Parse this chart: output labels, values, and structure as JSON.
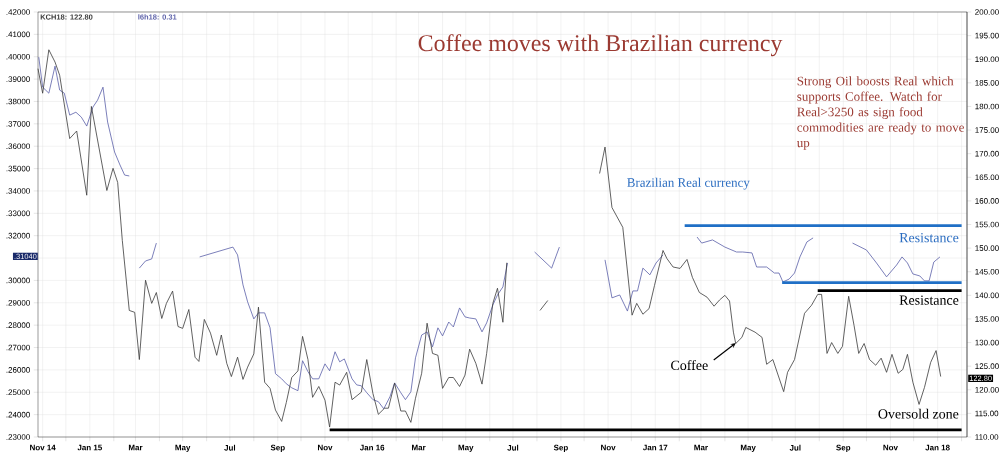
{
  "chart_data": {
    "type": "line",
    "title": "Coffee moves with Brazilian currency",
    "annotations": [
      "Strong Oil boosts Real which supports Coffee. Watch for Real>3250 as sign food commodities are ready to move up",
      "Brazilian Real currency",
      "Resistance",
      "Resistance",
      {
        "text": "Coffee",
        "x": "2017-04-15",
        "y": 0.272
      },
      "Oversold zone",
      ".31040",
      "122.80"
    ],
    "xlim": [
      "2014-10-26",
      "2018-02-08"
    ],
    "xticks": [
      {
        "value": "2014-11-01",
        "label": "Nov 14"
      },
      {
        "value": "2014-12-01",
        "label": null
      },
      {
        "value": "2015-01-01",
        "label": "Jan 15"
      },
      {
        "value": "2015-02-01",
        "label": null
      },
      {
        "value": "2015-03-01",
        "label": "Mar"
      },
      {
        "value": "2015-04-01",
        "label": null
      },
      {
        "value": "2015-05-01",
        "label": "May"
      },
      {
        "value": "2015-06-01",
        "label": null
      },
      {
        "value": "2015-07-01",
        "label": "Jul"
      },
      {
        "value": "2015-08-01",
        "label": null
      },
      {
        "value": "2015-09-01",
        "label": "Sep"
      },
      {
        "value": "2015-10-01",
        "label": null
      },
      {
        "value": "2015-11-01",
        "label": "Nov"
      },
      {
        "value": "2015-12-01",
        "label": null
      },
      {
        "value": "2016-01-01",
        "label": "Jan 16"
      },
      {
        "value": "2016-02-01",
        "label": null
      },
      {
        "value": "2016-03-01",
        "label": "Mar"
      },
      {
        "value": "2016-04-01",
        "label": null
      },
      {
        "value": "2016-05-01",
        "label": "May"
      },
      {
        "value": "2016-06-01",
        "label": null
      },
      {
        "value": "2016-07-01",
        "label": "Jul"
      },
      {
        "value": "2016-08-01",
        "label": null
      },
      {
        "value": "2016-09-01",
        "label": "Sep"
      },
      {
        "value": "2016-10-01",
        "label": null
      },
      {
        "value": "2016-11-01",
        "label": "Nov"
      },
      {
        "value": "2016-12-01",
        "label": null
      },
      {
        "value": "2017-01-01",
        "label": "Jan 17"
      },
      {
        "value": "2017-02-01",
        "label": null
      },
      {
        "value": "2017-03-01",
        "label": "Mar"
      },
      {
        "value": "2017-04-01",
        "label": null
      },
      {
        "value": "2017-05-01",
        "label": "May"
      },
      {
        "value": "2017-06-01",
        "label": null
      },
      {
        "value": "2017-07-01",
        "label": "Jul"
      },
      {
        "value": "2017-08-01",
        "label": null
      },
      {
        "value": "2017-09-01",
        "label": "Sep"
      },
      {
        "value": "2017-10-01",
        "label": null
      },
      {
        "value": "2017-11-01",
        "label": "Nov"
      },
      {
        "value": "2017-12-01",
        "label": null
      },
      {
        "value": "2018-01-01",
        "label": "Jan 18"
      },
      {
        "value": "2018-02-01",
        "label": null
      }
    ],
    "ylim": [
      0.23,
      0.42
    ],
    "yticks": [
      {
        "value": 0.23,
        "label": ".23000"
      },
      {
        "value": 0.24,
        "label": ".24000"
      },
      {
        "value": 0.25,
        "label": ".25000"
      },
      {
        "value": 0.26,
        "label": ".26000"
      },
      {
        "value": 0.27,
        "label": ".27000"
      },
      {
        "value": 0.28,
        "label": ".28000"
      },
      {
        "value": 0.29,
        "label": ".29000"
      },
      {
        "value": 0.3,
        "label": ".30000"
      },
      {
        "value": 0.31,
        "label": null
      },
      {
        "value": 0.32,
        "label": ".32000"
      },
      {
        "value": 0.33,
        "label": ".33000"
      },
      {
        "value": 0.34,
        "label": ".34000"
      },
      {
        "value": 0.35,
        "label": ".35000"
      },
      {
        "value": 0.36,
        "label": ".36000"
      },
      {
        "value": 0.37,
        "label": ".37000"
      },
      {
        "value": 0.38,
        "label": ".38000"
      },
      {
        "value": 0.39,
        "label": ".39000"
      },
      {
        "value": 0.4,
        "label": ".40000"
      },
      {
        "value": 0.41,
        "label": ".41000"
      },
      {
        "value": 0.42,
        "label": ".42000"
      }
    ],
    "y2lim": [
      110,
      200
    ],
    "y2ticks": [
      {
        "value": 110,
        "label": "110.00"
      },
      {
        "value": 115,
        "label": "115.00"
      },
      {
        "value": 120,
        "label": "120.00"
      },
      {
        "value": 125,
        "label": "125.00"
      },
      {
        "value": 130,
        "label": "130.00"
      },
      {
        "value": 135,
        "label": "135.00"
      },
      {
        "value": 140,
        "label": "140.00"
      },
      {
        "value": 145,
        "label": "145.00"
      },
      {
        "value": 150,
        "label": "150.00"
      },
      {
        "value": 155,
        "label": "155.00"
      },
      {
        "value": 160,
        "label": "160.00"
      },
      {
        "value": 165,
        "label": "165.00"
      },
      {
        "value": 170,
        "label": "170.00"
      },
      {
        "value": 175,
        "label": "175.00"
      },
      {
        "value": 180,
        "label": "180.00"
      },
      {
        "value": 185,
        "label": "185.00"
      },
      {
        "value": 190,
        "label": "190.00"
      },
      {
        "value": 195,
        "label": "195.00"
      },
      {
        "value": 200,
        "label": "200.00"
      }
    ],
    "grid": true,
    "legend": "top left",
    "series": [
      {
        "name": "KCH18: 122.80",
        "color": "#3a3a3a",
        "axis": "y2",
        "x": [
          "2014-10-26",
          "2014-11-01",
          "2014-11-09",
          "2014-11-17",
          "2014-11-23",
          "2014-12-06",
          "2014-12-15",
          "2014-12-28",
          "2015-01-03",
          "2015-01-23",
          "2015-01-31",
          "2015-02-06",
          "2015-02-12",
          "2015-02-21",
          "2015-02-28",
          "2015-03-06",
          "2015-03-14",
          "2015-03-22",
          "2015-03-28",
          "2015-04-04",
          "2015-04-10",
          "2015-04-18",
          "2015-04-25",
          "2015-05-01",
          "2015-05-09",
          "2015-05-17",
          "2015-05-22",
          "2015-05-29",
          "2015-06-06",
          "2015-06-14",
          "2015-06-20",
          "2015-06-27",
          "2015-07-03",
          "2015-07-11",
          "2015-07-18",
          "2015-07-24",
          "2015-08-01",
          "2015-08-07",
          "2015-08-15",
          "2015-08-22",
          "2015-08-29",
          "2015-09-06",
          "2015-09-12",
          "2015-09-19",
          "2015-09-27",
          "2015-10-03",
          "2015-10-10",
          "2015-10-16",
          "2015-10-24",
          "2015-11-01",
          "2015-11-07",
          "2015-11-14",
          "2015-11-20",
          "2015-11-29",
          "2015-12-06",
          "2015-12-18",
          "2015-12-25",
          "2016-01-02",
          "2016-01-09",
          "2016-01-17",
          "2016-01-22",
          "2016-01-30",
          "2016-02-07",
          "2016-02-13",
          "2016-02-20",
          "2016-02-26",
          "2016-03-05",
          "2016-03-12",
          "2016-03-19",
          "2016-03-26",
          "2016-04-01",
          "2016-04-09",
          "2016-04-15",
          "2016-04-23",
          "2016-04-30",
          "2016-05-06",
          "2016-05-14",
          "2016-05-22",
          "2016-05-28",
          "2016-06-05",
          "2016-06-11",
          "2016-06-18",
          "2016-06-23",
          "2016-07-10",
          "2016-08-05",
          "2016-08-15",
          "2016-09-20",
          "2016-10-21",
          "2016-10-28",
          "2016-11-06",
          "2016-11-20",
          "2016-12-02",
          "2016-12-08",
          "2016-12-16",
          "2016-12-24",
          "2016-12-31",
          "2017-01-11",
          "2017-01-16",
          "2017-01-24",
          "2017-02-02",
          "2017-02-11",
          "2017-02-18",
          "2017-02-27",
          "2017-03-09",
          "2017-03-18",
          "2017-03-25",
          "2017-04-01",
          "2017-04-07",
          "2017-04-12",
          "2017-04-15",
          "2017-04-23",
          "2017-04-28",
          "2017-05-10",
          "2017-05-19",
          "2017-05-25",
          "2017-06-02",
          "2017-06-16",
          "2017-06-21",
          "2017-06-30",
          "2017-07-13",
          "2017-07-22",
          "2017-07-30",
          "2017-08-04",
          "2017-08-11",
          "2017-08-17",
          "2017-08-25",
          "2017-08-31",
          "2017-09-08",
          "2017-09-15",
          "2017-09-21",
          "2017-09-28",
          "2017-10-05",
          "2017-10-13",
          "2017-10-20",
          "2017-10-27",
          "2017-11-03",
          "2017-11-11",
          "2017-11-17",
          "2017-11-23",
          "2017-11-30",
          "2017-12-08",
          "2017-12-15",
          "2017-12-23",
          "2017-12-30",
          "2018-01-05"
        ],
        "values": [
          188,
          182.8,
          192,
          189.4,
          186.6,
          173.2,
          174.8,
          161.2,
          180,
          162.2,
          166.9,
          163.9,
          151.6,
          136.8,
          136.4,
          126.4,
          143.2,
          138.3,
          140.6,
          135.1,
          138.3,
          140.9,
          133.4,
          133,
          137,
          126.9,
          126,
          134.9,
          132,
          127.3,
          131.6,
          125.6,
          122.8,
          126.9,
          122.2,
          124.8,
          127.6,
          137.5,
          121.6,
          120.3,
          115.7,
          113.3,
          117.3,
          122.6,
          124,
          131.3,
          126.4,
          118.4,
          120.7,
          117.8,
          112.1,
          121.6,
          121,
          123.7,
          117.9,
          119.5,
          126.4,
          119.2,
          114.8,
          116.1,
          116.1,
          121.4,
          115.5,
          115.5,
          113.1,
          118.2,
          123.5,
          134.1,
          127.7,
          127.3,
          120.3,
          122.6,
          122.6,
          120.7,
          123.1,
          128.6,
          125.6,
          121.2,
          127.7,
          138.3,
          141.5,
          134.3,
          146.9,
          null,
          136.8,
          138.9,
          null,
          165.8,
          171.4,
          158.6,
          154.4,
          135.8,
          138.3,
          136,
          137.2,
          142.1,
          149.5,
          147.8,
          146,
          145.7,
          147.6,
          143.8,
          140.6,
          139.6,
          137.7,
          139,
          140,
          138.8,
          132.2,
          129.8,
          131.1,
          133.2,
          132.2,
          131.1,
          125.4,
          126.4,
          119.6,
          123.7,
          126.4,
          136.2,
          137.9,
          140.2,
          140.2,
          127.7,
          130,
          127.7,
          129.2,
          139.8,
          133.6,
          127.7,
          129.8,
          126.4,
          125.2,
          126.7,
          123.7,
          127.5,
          123.5,
          124.3,
          127.5,
          121.6,
          116.9,
          120.5,
          125.8,
          128.3,
          122.8
        ]
      },
      {
        "name": "l6h18: 0.31",
        "color": "#5a5fa8",
        "x": [
          "2014-10-27",
          "2014-11-01",
          "2014-11-09",
          "2014-11-17",
          "2014-11-23",
          "2014-11-29",
          "2014-12-06",
          "2014-12-14",
          "2014-12-21",
          "2014-12-28",
          "2015-01-05",
          "2015-01-11",
          "2015-01-18",
          "2015-01-24",
          "2015-02-02",
          "2015-02-09",
          "2015-02-15",
          "2015-02-21",
          "2015-02-28",
          "2015-03-06",
          "2015-03-14",
          "2015-03-22",
          "2015-03-28",
          "2015-04-25",
          "2015-05-23",
          "2015-07-05",
          "2015-07-11",
          "2015-07-18",
          "2015-07-24",
          "2015-08-01",
          "2015-08-07",
          "2015-08-15",
          "2015-08-22",
          "2015-08-29",
          "2015-09-06",
          "2015-09-12",
          "2015-09-19",
          "2015-09-27",
          "2015-10-03",
          "2015-10-10",
          "2015-10-16",
          "2015-10-24",
          "2015-11-01",
          "2015-11-07",
          "2015-11-14",
          "2015-11-20",
          "2015-11-26",
          "2015-12-06",
          "2015-12-12",
          "2015-12-18",
          "2015-12-25",
          "2016-01-02",
          "2016-01-09",
          "2016-01-16",
          "2016-01-24",
          "2016-01-30",
          "2016-02-07",
          "2016-02-13",
          "2016-02-20",
          "2016-02-26",
          "2016-03-05",
          "2016-03-12",
          "2016-03-19",
          "2016-03-26",
          "2016-04-01",
          "2016-04-09",
          "2016-04-15",
          "2016-04-23",
          "2016-04-30",
          "2016-05-06",
          "2016-05-14",
          "2016-05-22",
          "2016-05-28",
          "2016-06-05",
          "2016-06-11",
          "2016-06-18",
          "2016-06-24",
          "2016-07-10",
          "2016-07-29",
          "2016-08-20",
          "2016-08-30",
          "2016-09-25",
          "2016-10-28",
          "2016-11-06",
          "2016-11-16",
          "2016-11-26",
          "2016-12-03",
          "2016-12-09",
          "2016-12-16",
          "2016-12-25",
          "2017-01-02",
          "2017-01-11",
          "2017-02-02",
          "2017-02-24",
          "2017-03-02",
          "2017-03-16",
          "2017-04-01",
          "2017-04-16",
          "2017-04-24",
          "2017-05-06",
          "2017-05-12",
          "2017-05-25",
          "2017-06-04",
          "2017-06-10",
          "2017-06-15",
          "2017-06-23",
          "2017-06-30",
          "2017-07-07",
          "2017-07-16",
          "2017-07-24",
          "2017-08-14",
          "2017-09-13",
          "2017-10-01",
          "2017-10-14",
          "2017-10-27",
          "2017-11-09",
          "2017-11-16",
          "2017-11-23",
          "2017-11-30",
          "2017-12-09",
          "2017-12-15",
          "2017-12-21",
          "2017-12-27",
          "2018-01-04"
        ],
        "values": [
          0.3998,
          0.3864,
          0.3837,
          0.3958,
          0.3851,
          0.3837,
          0.3739,
          0.3752,
          0.373,
          0.369,
          0.3775,
          0.3806,
          0.3864,
          0.3708,
          0.3574,
          0.3516,
          0.3471,
          0.3467,
          null,
          0.3055,
          0.3087,
          0.3096,
          0.3167,
          null,
          0.3105,
          0.3149,
          0.3114,
          0.298,
          0.2904,
          0.2828,
          0.2855,
          0.2855,
          0.2788,
          0.2583,
          0.256,
          0.2538,
          0.252,
          0.2507,
          0.2641,
          0.2592,
          0.256,
          0.256,
          0.2627,
          0.2596,
          0.2681,
          0.2636,
          0.2649,
          0.256,
          0.2533,
          0.2529,
          0.2498,
          0.2467,
          0.2458,
          0.2426,
          0.248,
          0.2542,
          0.2498,
          0.2467,
          0.2502,
          0.2654,
          0.2756,
          0.277,
          0.2703,
          0.2788,
          0.2752,
          0.2814,
          0.2792,
          0.2877,
          0.2837,
          0.2832,
          0.2828,
          0.277,
          0.281,
          0.289,
          0.2935,
          0.2971,
          0.3078,
          null,
          0.3127,
          0.3055,
          0.3149,
          null,
          0.3092,
          0.2922,
          0.2935,
          0.2863,
          0.2953,
          0.2953,
          0.3055,
          0.3025,
          0.3078,
          0.3114,
          null,
          0.3194,
          0.3167,
          0.3181,
          0.3149,
          0.3127,
          0.3127,
          0.3123,
          0.306,
          0.306,
          0.3033,
          0.3033,
          0.2993,
          0.3006,
          0.3033,
          0.3105,
          0.3172,
          0.319,
          null,
          0.3167,
          0.3136,
          0.3078,
          0.3016,
          0.3069,
          0.3105,
          0.3078,
          0.3029,
          0.302,
          0.2998,
          0.2998,
          0.3082,
          0.3105
        ]
      },
      {
        "type": "line",
        "color": "#1f6fc6",
        "x": [
          "2017-02-08",
          "2018-02-01"
        ],
        "values": [
          0.3245,
          0.3245
        ]
      },
      {
        "type": "line",
        "color": "#1f6fc6",
        "x": [
          "2017-06-14",
          "2018-02-01"
        ],
        "values": [
          0.299,
          0.299
        ]
      },
      {
        "type": "line",
        "color": "#000000",
        "axis": "y2",
        "x": [
          "2017-07-30",
          "2018-02-01"
        ],
        "values": [
          141,
          141
        ]
      },
      {
        "type": "line",
        "color": "#000000",
        "axis": "y2",
        "x": [
          "2015-11-07",
          "2018-02-01"
        ],
        "values": [
          111.5,
          111.5
        ]
      }
    ]
  }
}
